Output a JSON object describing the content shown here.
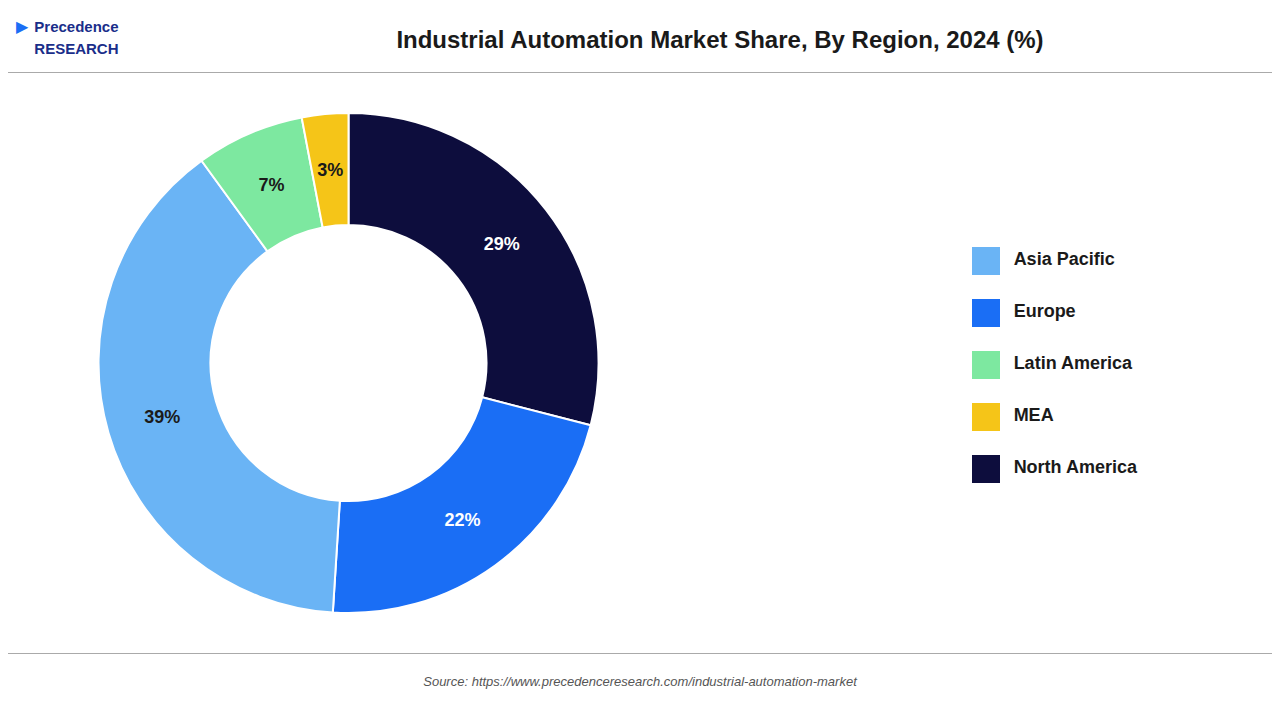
{
  "chart_data": {
    "type": "pie",
    "title": "Industrial Automation Market Share, By Region, 2024 (%)",
    "categories": [
      "North America",
      "Europe",
      "Asia Pacific",
      "Latin America",
      "MEA"
    ],
    "values": [
      29,
      22,
      39,
      7,
      3
    ],
    "value_labels": [
      "29%",
      "22%",
      "39%",
      "7%",
      "3%"
    ],
    "colors": [
      "#0d0d3d",
      "#1a6ef5",
      "#6ab4f5",
      "#7de8a0",
      "#f5c518"
    ],
    "data_labels": true,
    "legend": "right",
    "annotations": [
      "Source: https://www.precedenceresearch.com/industrial-automation-market",
      "Precedence\nRESEARCH",
      "▶"
    ]
  }
}
